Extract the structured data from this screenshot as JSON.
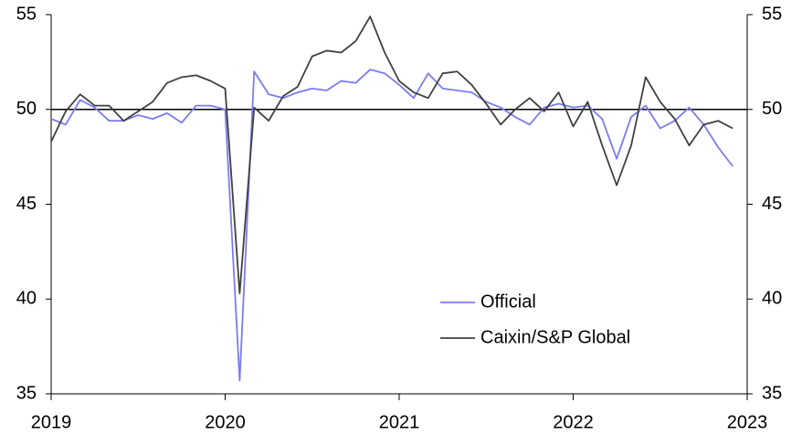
{
  "chart_data": {
    "type": "line",
    "categories": [
      null,
      null,
      null,
      null,
      null,
      null,
      null,
      null,
      null,
      null,
      null,
      null,
      null,
      null,
      null,
      null,
      null,
      null,
      null,
      null,
      null,
      null,
      null,
      null,
      null,
      null,
      null,
      null,
      null,
      null,
      null,
      null,
      null,
      null,
      null,
      null,
      null,
      null,
      null,
      null,
      null,
      null,
      null,
      null,
      null,
      null,
      null,
      null
    ],
    "series": [
      {
        "name": "Official",
        "color": "#7b7bf2",
        "values": [
          49.5,
          49.2,
          50.5,
          50.1,
          49.4,
          49.4,
          49.7,
          49.5,
          49.8,
          49.3,
          50.2,
          50.2,
          50.0,
          35.7,
          52.0,
          50.8,
          50.6,
          50.9,
          51.1,
          51.0,
          51.5,
          51.4,
          52.1,
          51.9,
          51.3,
          50.6,
          51.9,
          51.1,
          51.0,
          50.9,
          50.4,
          50.1,
          49.6,
          49.2,
          50.1,
          50.3,
          50.1,
          50.2,
          49.5,
          47.4,
          49.6,
          50.2,
          49.0,
          49.4,
          50.1,
          49.2,
          48.0,
          47.0
        ]
      },
      {
        "name": "Caixin/S&P Global",
        "color": "#404040",
        "values": [
          48.3,
          49.9,
          50.8,
          50.2,
          50.2,
          49.4,
          49.9,
          50.4,
          51.4,
          51.7,
          51.8,
          51.5,
          51.1,
          40.3,
          50.1,
          49.4,
          50.7,
          51.2,
          52.8,
          53.1,
          53.0,
          53.6,
          54.9,
          53.0,
          51.5,
          50.9,
          50.6,
          51.9,
          52.0,
          51.3,
          50.3,
          49.2,
          50.0,
          50.6,
          49.9,
          50.9,
          49.1,
          50.4,
          48.1,
          46.0,
          48.1,
          51.7,
          50.4,
          49.5,
          48.1,
          49.2,
          49.4,
          49.0
        ]
      }
    ],
    "xlim": [
      2019,
      2023
    ],
    "xticks": [
      2019,
      2020,
      2021,
      2022,
      2023
    ],
    "ylim": [
      35,
      55
    ],
    "yticks": [
      35,
      40,
      45,
      50,
      55
    ],
    "y2lim": [
      35,
      55
    ],
    "y2ticks": [
      35,
      40,
      45,
      50,
      55
    ],
    "reference_line": 50,
    "legend": "lower right",
    "grid": false
  }
}
